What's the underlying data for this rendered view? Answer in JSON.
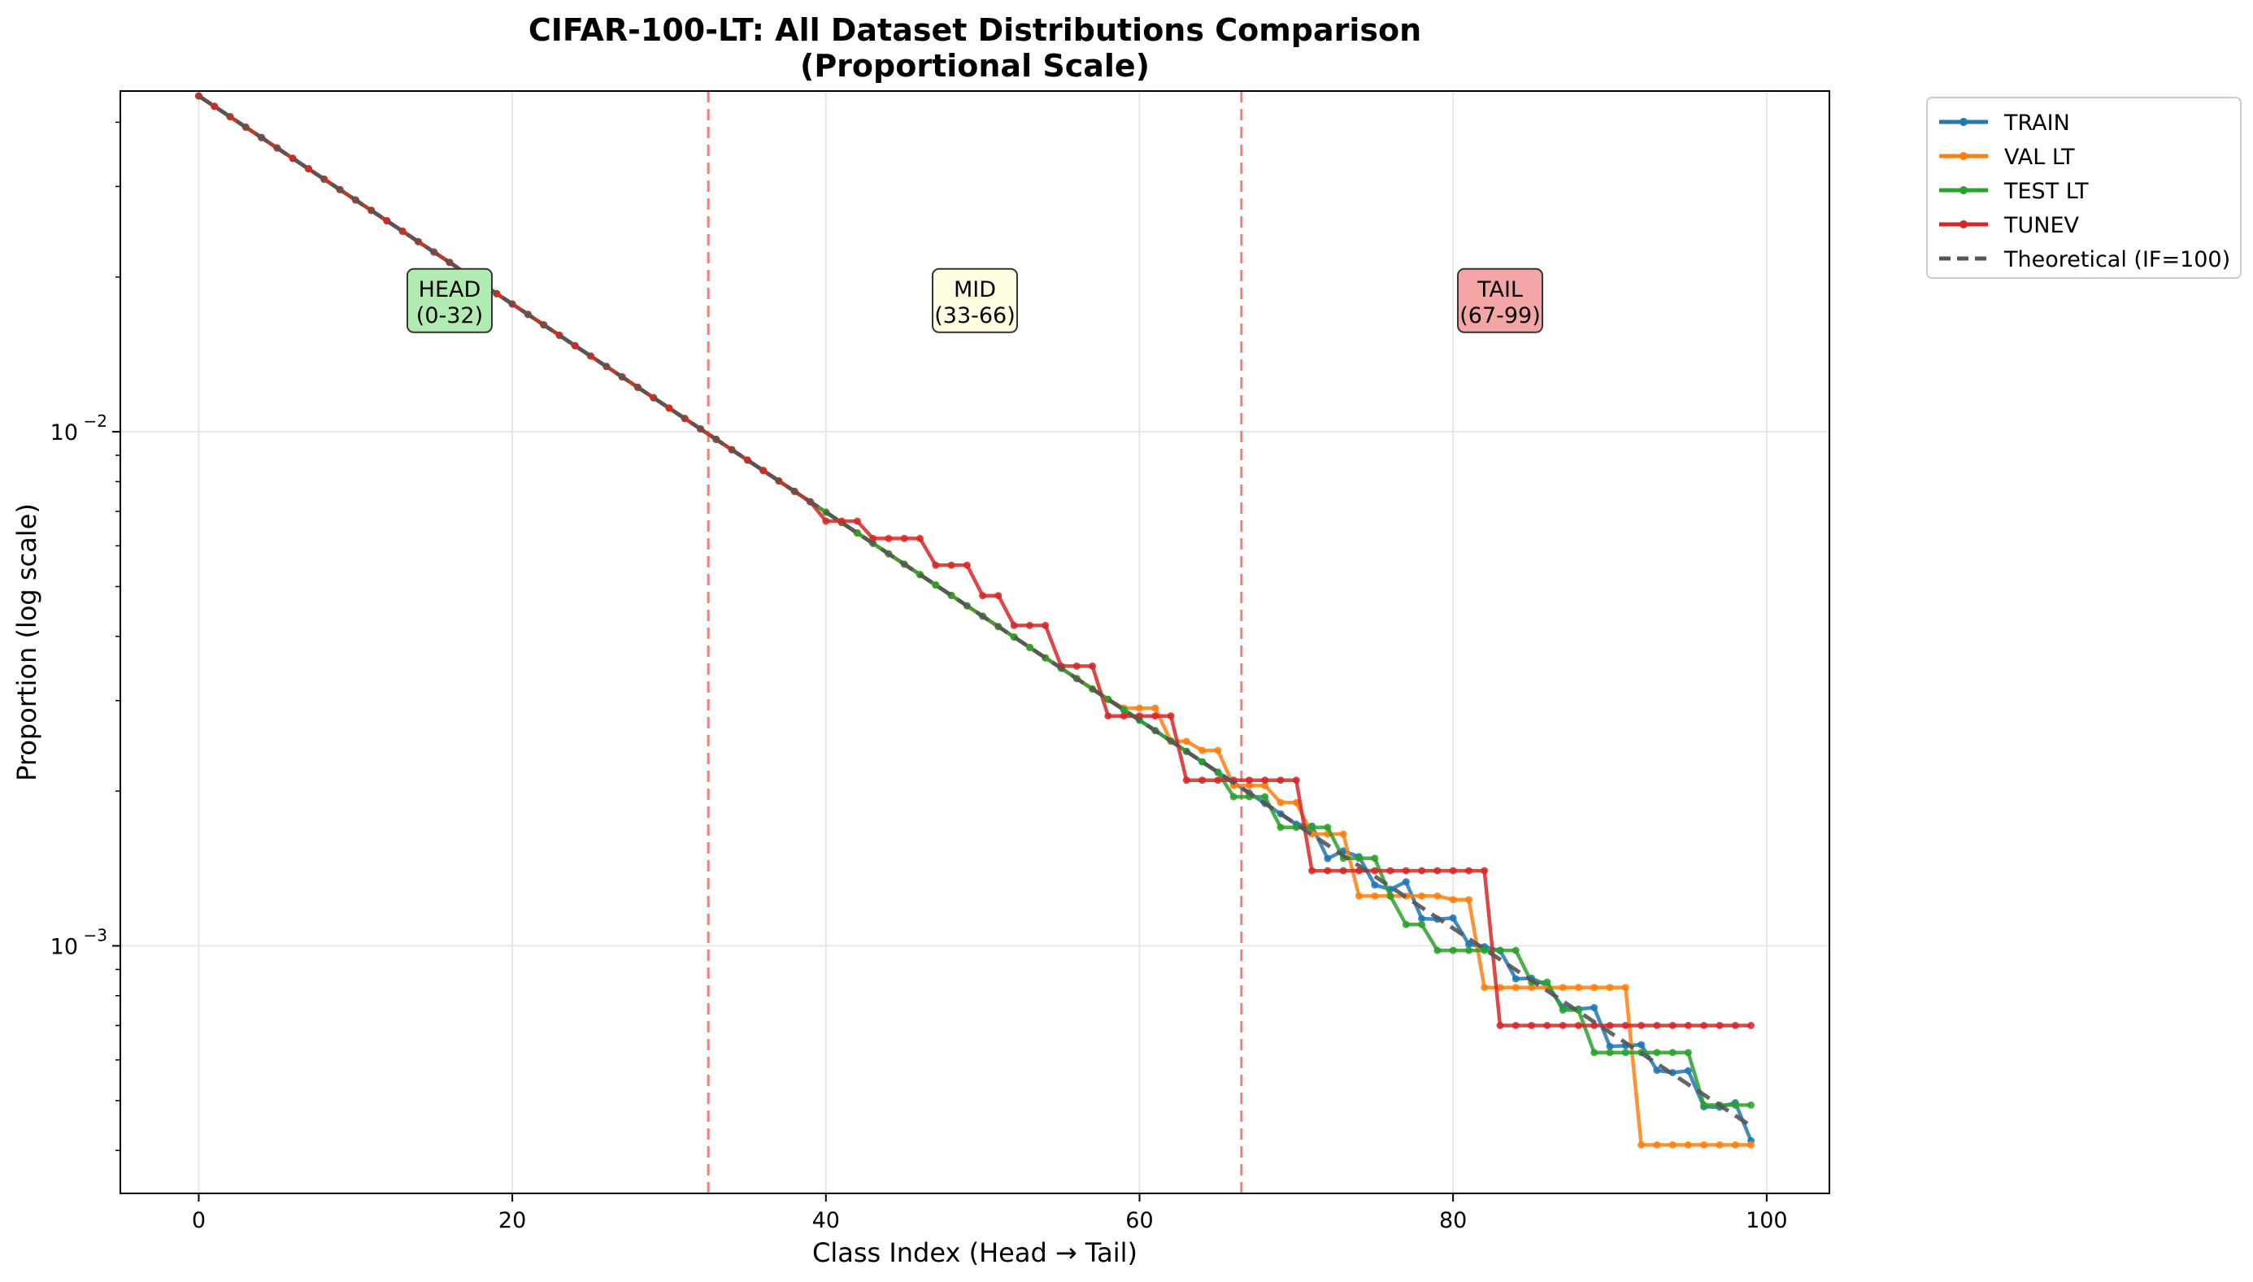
{
  "chart_data": {
    "type": "line",
    "title": "CIFAR-100-LT: All Dataset Distributions Comparison",
    "subtitle": "(Proportional Scale)",
    "xlabel": "Class Index (Head → Tail)",
    "ylabel": "Proportion (log scale)",
    "xlim": [
      -5,
      104
    ],
    "ylim": [
      0.00033,
      0.046
    ],
    "yscale": "log",
    "x_ticks": [
      0,
      20,
      40,
      60,
      80,
      100
    ],
    "y_ticks": [
      {
        "value": 0.01,
        "base": "10",
        "exp": "−2"
      },
      {
        "value": 0.001,
        "base": "10",
        "exp": "−3"
      }
    ],
    "grid": true,
    "legend_position": "outside top-right",
    "region_boundaries": [
      32.5,
      66.5
    ],
    "regions": [
      {
        "label": "HEAD",
        "range": "(0-32)",
        "x": 16,
        "y": 0.0178,
        "color": "#b2ebb2"
      },
      {
        "label": "MID",
        "range": "(33-66)",
        "x": 49.5,
        "y": 0.0178,
        "color": "#fffde1"
      },
      {
        "label": "TAIL",
        "range": "(67-99)",
        "x": 83,
        "y": 0.0178,
        "color": "#f4a6a6"
      }
    ],
    "series": [
      {
        "name": "TRAIN",
        "color": "#1f77b4",
        "dashed": false,
        "markers": true,
        "model": "exp",
        "a": 0.045,
        "b": 0.0466,
        "noise": 0.012,
        "seed": 3
      },
      {
        "name": "VAL LT",
        "color": "#ff7f0e",
        "dashed": false,
        "markers": true,
        "model": "steps",
        "steps": [
          [
            0,
            33,
            "exp"
          ],
          [
            33,
            60,
            "exp"
          ],
          [
            59,
            62,
            0.0029
          ],
          [
            62,
            64,
            0.0025
          ],
          [
            64,
            66,
            0.0024
          ],
          [
            66,
            69,
            0.00205
          ],
          [
            69,
            71,
            0.0019
          ],
          [
            71,
            74,
            0.00165
          ],
          [
            74,
            80,
            0.00125
          ],
          [
            80,
            82,
            0.00123
          ],
          [
            82,
            92,
            0.00083
          ],
          [
            92,
            100,
            0.00041
          ]
        ]
      },
      {
        "name": "TEST LT",
        "color": "#2ca02c",
        "dashed": false,
        "markers": true,
        "model": "steps",
        "steps": [
          [
            0,
            62,
            "exp"
          ],
          [
            62,
            66,
            "exp"
          ],
          [
            66,
            69,
            0.00195
          ],
          [
            69,
            73,
            0.0017
          ],
          [
            73,
            76,
            0.00148
          ],
          [
            76,
            77,
            0.00125
          ],
          [
            77,
            79,
            0.0011
          ],
          [
            79,
            82,
            0.00098
          ],
          [
            82,
            84,
            0.00098
          ],
          [
            84,
            85,
            0.00098
          ],
          [
            85,
            87,
            0.00085
          ],
          [
            87,
            89,
            0.00075
          ],
          [
            89,
            92,
            0.00062
          ],
          [
            92,
            96,
            0.00062
          ],
          [
            96,
            100,
            0.00049
          ]
        ]
      },
      {
        "name": "TUNEV",
        "color": "#d62728",
        "dashed": false,
        "markers": true,
        "model": "steps",
        "steps": [
          [
            0,
            40,
            "exp"
          ],
          [
            40,
            43,
            0.0067
          ],
          [
            43,
            47,
            0.0062
          ],
          [
            47,
            50,
            0.0055
          ],
          [
            50,
            52,
            0.0048
          ],
          [
            52,
            55,
            0.0042
          ],
          [
            55,
            58,
            0.0035
          ],
          [
            58,
            63,
            0.0028
          ],
          [
            63,
            71,
            0.0021
          ],
          [
            71,
            83,
            0.0014
          ],
          [
            83,
            100,
            0.0007
          ]
        ]
      },
      {
        "name": "Theoretical (IF=100)",
        "color": "#555555",
        "dashed": true,
        "markers": false,
        "model": "exp",
        "a": 0.045,
        "b": 0.0466
      }
    ]
  }
}
